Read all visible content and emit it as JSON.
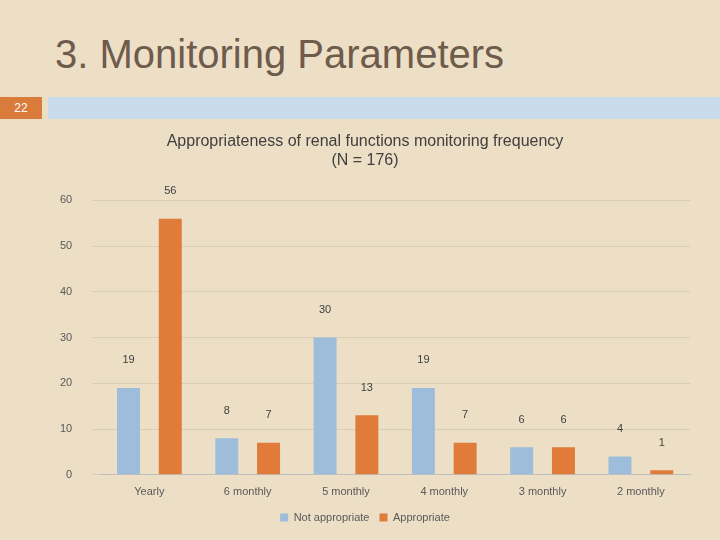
{
  "slide": {
    "title": "3. Monitoring Parameters",
    "page_number": 22
  },
  "chart_data": {
    "type": "bar",
    "title": [
      "Appropriateness of renal functions monitoring frequency",
      "(N = 176)"
    ],
    "categories": [
      "Yearly",
      "6 monthly",
      "5 monthly",
      "4 monthly",
      "3 monthly",
      "2 monthly"
    ],
    "series": [
      {
        "name": "Not appropriate",
        "color": "#9dbddb",
        "values": [
          19,
          8,
          30,
          19,
          6,
          4
        ]
      },
      {
        "name": "Appropriate",
        "color": "#e07b39",
        "values": [
          56,
          7,
          13,
          7,
          6,
          1
        ]
      }
    ],
    "ylim": [
      0,
      60
    ],
    "yticks": [
      0,
      10,
      20,
      30,
      40,
      50,
      60
    ],
    "grid": true,
    "legend": "bottom",
    "data_labels": true
  }
}
